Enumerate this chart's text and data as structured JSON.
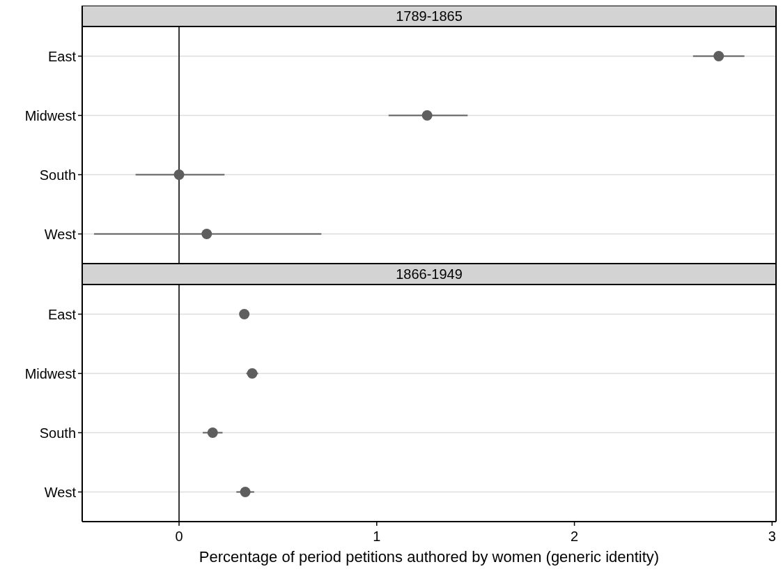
{
  "chart_data": [
    {
      "type": "scatter",
      "title": "1789-1865",
      "orientation": "horizontal",
      "categories": [
        "East",
        "Midwest",
        "South",
        "West"
      ],
      "series": [
        {
          "color": "#5e5e5e",
          "values": [
            2.73,
            1.255,
            0,
            0.14
          ],
          "errors": [
            [
              2.6,
              2.86
            ],
            [
              1.06,
              1.46
            ],
            [
              -0.22,
              0.23
            ],
            [
              -0.43,
              0.72
            ]
          ]
        }
      ],
      "xlim": [
        -0.49,
        3.02
      ],
      "xticks": [
        0,
        1,
        2,
        3
      ],
      "tick_labels": "y",
      "grid": "y",
      "marker": "circle",
      "ref_lines": [
        {
          "axis": "x",
          "value": 0,
          "color": "#333333"
        }
      ]
    },
    {
      "type": "scatter",
      "title": "1866-1949",
      "orientation": "horizontal",
      "categories": [
        "East",
        "Midwest",
        "South",
        "West"
      ],
      "series": [
        {
          "color": "#5e5e5e",
          "values": [
            0.33,
            0.37,
            0.17,
            0.335
          ],
          "errors": [
            [
              0.31,
              0.35
            ],
            [
              0.34,
              0.4
            ],
            [
              0.12,
              0.22
            ],
            [
              0.29,
              0.38
            ]
          ]
        }
      ],
      "xlim": [
        -0.49,
        3.02
      ],
      "xticks": [
        0,
        1,
        2,
        3
      ],
      "xlabel": "Percentage of period petitions authored by women (generic identity)",
      "grid": "y",
      "marker": "circle",
      "ref_lines": [
        {
          "axis": "x",
          "value": 0,
          "color": "#333333"
        }
      ]
    }
  ]
}
